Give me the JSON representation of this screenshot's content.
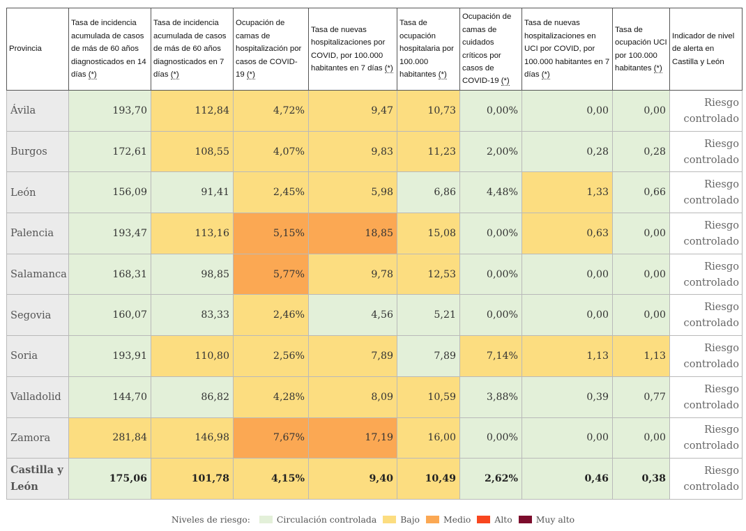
{
  "table": {
    "headers": [
      {
        "text": "Provincia",
        "ast": ""
      },
      {
        "text": "Tasa de incidencia acumulada de casos de más de 60 años diagnosticados en 14 días ",
        "ast": "(*)"
      },
      {
        "text": "Tasa de incidencia acumulada de casos de más de 60 años diagnosticados en 7 días ",
        "ast": "(*)"
      },
      {
        "text": "Ocupación de camas de hospitalización por casos de COVID-19 ",
        "ast": "(*)"
      },
      {
        "text": "Tasa de nuevas hospitalizaciones por COVID, por 100.000 habitantes en 7 días ",
        "ast": "(*)"
      },
      {
        "text": "Tasa de ocupación hospitalaria por 100.000 habitantes ",
        "ast": "(*)"
      },
      {
        "text": "Ocupación de camas de cuidados críticos por casos de COVID-19 ",
        "ast": "(*)"
      },
      {
        "text": "Tasa de nuevas hospitalizaciones en UCI por COVID, por 100.000 habitantes en 7 días ",
        "ast": "(*)"
      },
      {
        "text": "Tasa de ocupación UCI por 100.000 habitantes ",
        "ast": "(*)"
      },
      {
        "text": "Indicador de nivel de alerta en Castilla y León",
        "ast": ""
      }
    ],
    "rows": [
      {
        "provincia": "Ávila",
        "values": [
          "193,70",
          "112,84",
          "4,72%",
          "9,47",
          "10,73",
          "0,00%",
          "0,00",
          "0,00"
        ],
        "levels": [
          "cc",
          "bajo",
          "bajo",
          "bajo",
          "bajo",
          "cc",
          "cc",
          "cc"
        ],
        "alert": "Riesgo controlado"
      },
      {
        "provincia": "Burgos",
        "values": [
          "172,61",
          "108,55",
          "4,07%",
          "9,83",
          "11,23",
          "2,00%",
          "0,28",
          "0,28"
        ],
        "levels": [
          "cc",
          "bajo",
          "bajo",
          "bajo",
          "bajo",
          "cc",
          "cc",
          "cc"
        ],
        "alert": "Riesgo controlado"
      },
      {
        "provincia": "León",
        "values": [
          "156,09",
          "91,41",
          "2,45%",
          "5,98",
          "6,86",
          "4,48%",
          "1,33",
          "0,66"
        ],
        "levels": [
          "cc",
          "cc",
          "bajo",
          "bajo",
          "cc",
          "cc",
          "bajo",
          "cc"
        ],
        "alert": "Riesgo controlado"
      },
      {
        "provincia": "Palencia",
        "values": [
          "193,47",
          "113,16",
          "5,15%",
          "18,85",
          "15,08",
          "0,00%",
          "0,63",
          "0,00"
        ],
        "levels": [
          "cc",
          "bajo",
          "medio",
          "medio",
          "bajo",
          "cc",
          "bajo",
          "cc"
        ],
        "alert": "Riesgo controlado"
      },
      {
        "provincia": "Salamanca",
        "values": [
          "168,31",
          "98,85",
          "5,77%",
          "9,78",
          "12,53",
          "0,00%",
          "0,00",
          "0,00"
        ],
        "levels": [
          "cc",
          "cc",
          "medio",
          "bajo",
          "bajo",
          "cc",
          "cc",
          "cc"
        ],
        "alert": "Riesgo controlado"
      },
      {
        "provincia": "Segovia",
        "values": [
          "160,07",
          "83,33",
          "2,46%",
          "4,56",
          "5,21",
          "0,00%",
          "0,00",
          "0,00"
        ],
        "levels": [
          "cc",
          "cc",
          "bajo",
          "cc",
          "cc",
          "cc",
          "cc",
          "cc"
        ],
        "alert": "Riesgo controlado"
      },
      {
        "provincia": "Soria",
        "values": [
          "193,91",
          "110,80",
          "2,56%",
          "7,89",
          "7,89",
          "7,14%",
          "1,13",
          "1,13"
        ],
        "levels": [
          "cc",
          "bajo",
          "bajo",
          "bajo",
          "cc",
          "bajo",
          "bajo",
          "bajo"
        ],
        "alert": "Riesgo controlado"
      },
      {
        "provincia": "Valladolid",
        "values": [
          "144,70",
          "86,82",
          "4,28%",
          "8,09",
          "10,59",
          "3,88%",
          "0,39",
          "0,77"
        ],
        "levels": [
          "cc",
          "cc",
          "bajo",
          "bajo",
          "bajo",
          "cc",
          "cc",
          "cc"
        ],
        "alert": "Riesgo controlado"
      },
      {
        "provincia": "Zamora",
        "values": [
          "281,84",
          "146,98",
          "7,67%",
          "17,19",
          "16,00",
          "0,00%",
          "0,00",
          "0,00"
        ],
        "levels": [
          "bajo",
          "bajo",
          "medio",
          "medio",
          "bajo",
          "cc",
          "cc",
          "cc"
        ],
        "alert": "Riesgo controlado"
      },
      {
        "provincia": "Castilla y León",
        "values": [
          "175,06",
          "101,78",
          "4,15%",
          "9,40",
          "10,49",
          "2,62%",
          "0,46",
          "0,38"
        ],
        "levels": [
          "cc",
          "bajo",
          "bajo",
          "bajo",
          "bajo",
          "cc",
          "cc",
          "cc"
        ],
        "alert": "Riesgo controlado",
        "total": true
      }
    ]
  },
  "legend": {
    "title": "Niveles de riesgo:",
    "items": [
      {
        "label": "Circulación controlada",
        "color": "#e3f0d9"
      },
      {
        "label": "Bajo",
        "color": "#fcdd80"
      },
      {
        "label": "Medio",
        "color": "#fba853"
      },
      {
        "label": "Alto",
        "color": "#f8461f"
      },
      {
        "label": "Muy alto",
        "color": "#7c0c2c"
      }
    ]
  }
}
